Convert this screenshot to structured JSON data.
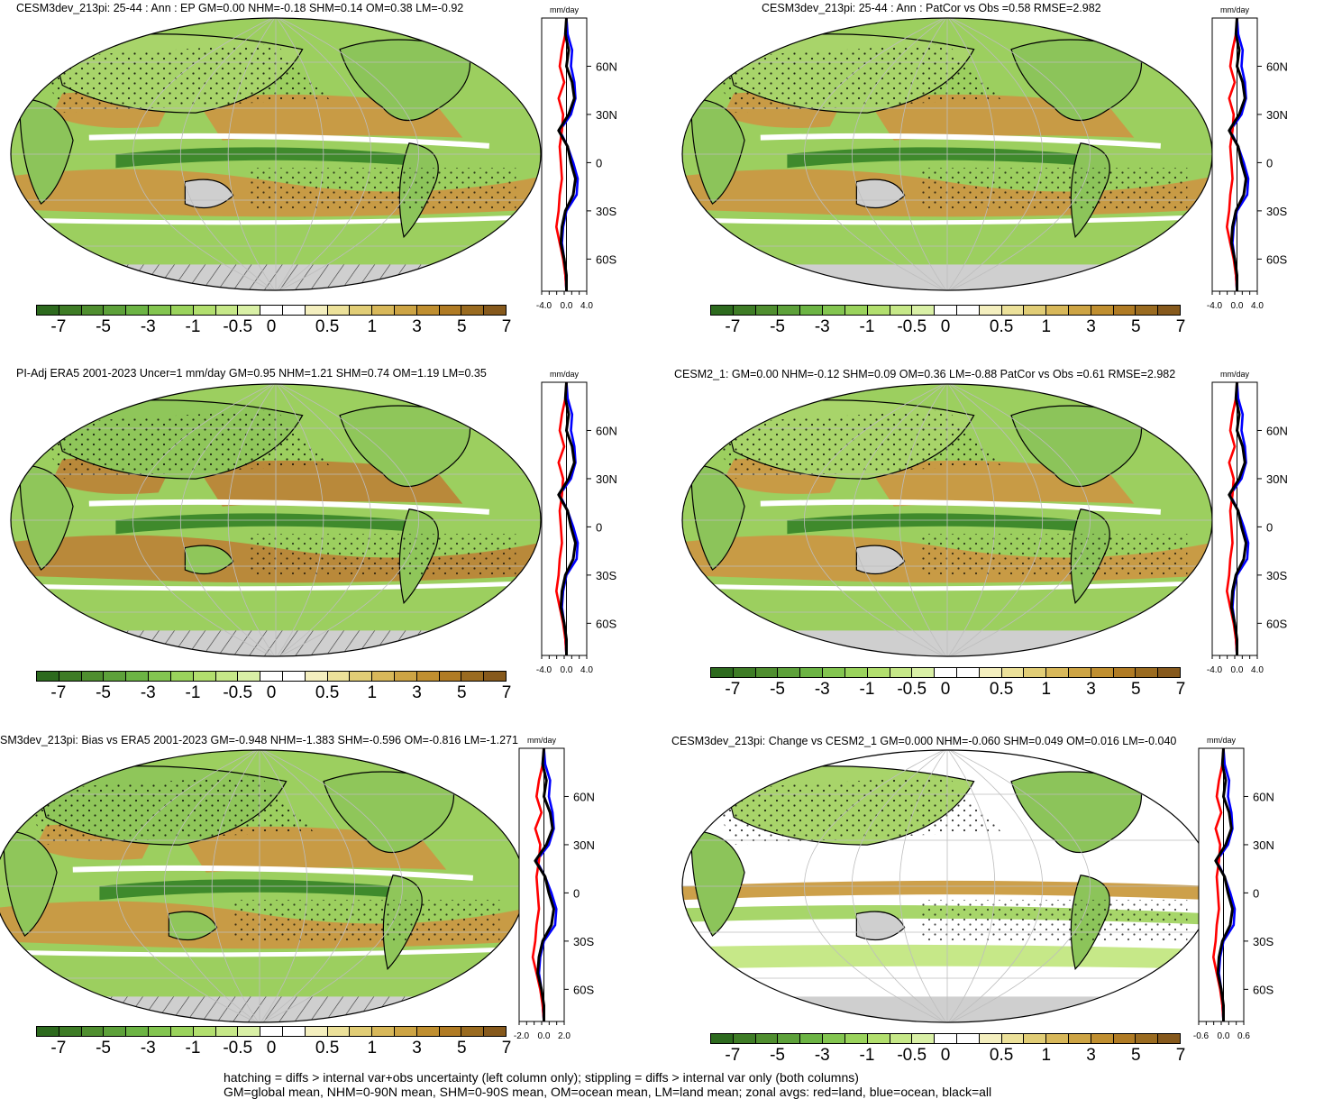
{
  "units": "mm/day",
  "colorbar": {
    "labels": [
      "-7",
      "-5",
      "-3",
      "-1",
      "-0.5",
      "0",
      "0.5",
      "1",
      "3",
      "5",
      "7"
    ],
    "colors": [
      "#2d6a1e",
      "#3e7c26",
      "#4f8e2f",
      "#5da13a",
      "#6cb444",
      "#83c550",
      "#9ad35c",
      "#b2df6e",
      "#c6e888",
      "#d9f0a6",
      "#ffffff",
      "#ffffff",
      "#f4efbf",
      "#ece19a",
      "#e1cd76",
      "#d8b85a",
      "#cda444",
      "#c08f30",
      "#b07b24",
      "#9a6b20",
      "#86591c"
    ]
  },
  "lat_labels": [
    "60N",
    "30N",
    "0",
    "30S",
    "60S"
  ],
  "legend_colors": {
    "land": "#ff0000",
    "ocean": "#0000ff",
    "all": "#000000"
  },
  "panels": [
    {
      "id": "p1",
      "title": "CESM3dev_213pi: 25-44 : Ann : EP GM=0.00 NHM=-0.18 SHM=0.14 OM=0.38 LM=-0.92",
      "xticks": [
        "-4.0",
        "0.0",
        "4.0"
      ],
      "hatch": true,
      "stipple": true
    },
    {
      "id": "p2",
      "title": "CESM3dev_213pi: 25-44 : Ann : PatCor vs Obs =0.58 RMSE=2.982",
      "xticks": [
        "-4.0",
        "0.0",
        "4.0"
      ],
      "hatch": false,
      "stipple": true
    },
    {
      "id": "p3",
      "title": "PI-Adj ERA5 2001-2023 Uncer=1 mm/day GM=0.95 NHM=1.21 SHM=0.74 OM=1.19 LM=0.35",
      "xticks": [
        "-4.0",
        "0.0",
        "4.0"
      ],
      "hatch": true,
      "stipple": true
    },
    {
      "id": "p4",
      "title": "CESM2_1: GM=0.00 NHM=-0.12 SHM=0.09 OM=0.36 LM=-0.88 PatCor vs Obs =0.61 RMSE=2.982",
      "xticks": [
        "-4.0",
        "0.0",
        "4.0"
      ],
      "hatch": false,
      "stipple": true
    },
    {
      "id": "p5",
      "title": "SM3dev_213pi: Bias vs ERA5 2001-2023 GM=-0.948 NHM=-1.383 SHM=-0.596 OM=-0.816 LM=-1.271",
      "xticks": [
        "-2.0",
        "0.0",
        "2.0"
      ],
      "hatch": true,
      "stipple": true
    },
    {
      "id": "p6",
      "title": "CESM3dev_213pi: Change vs CESM2_1 GM=0.000 NHM=-0.060 SHM=0.049 OM=0.016 LM=-0.040",
      "xticks": [
        "-0.6",
        "0.0",
        "0.6"
      ],
      "hatch": false,
      "stipple": true
    }
  ],
  "footer": {
    "line1": "hatching = diffs > internal var+obs uncertainty (left column only); stippling = diffs > internal var only (both columns)",
    "line2": "GM=global mean, NHM=0-90N mean, SHM=0-90S mean, OM=ocean mean, LM=land mean; zonal avgs: red=land, blue=ocean, black=all"
  }
}
